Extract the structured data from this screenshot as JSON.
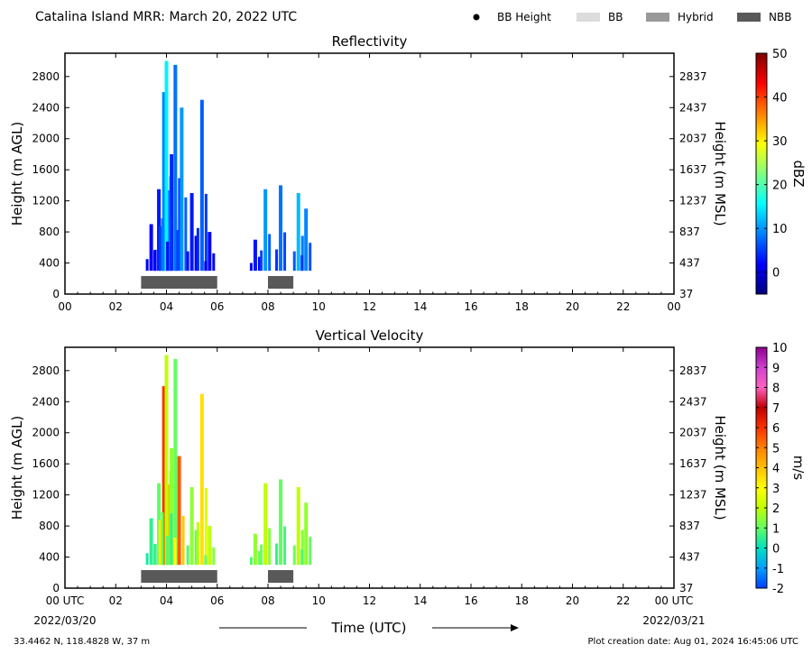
{
  "header": {
    "title": "Catalina Island MRR:  March 20, 2022 UTC",
    "legend": [
      {
        "label": "BB Height",
        "kind": "dot",
        "color": "#000000"
      },
      {
        "label": "BB",
        "kind": "box",
        "color": "#dcdcdc"
      },
      {
        "label": "Hybrid",
        "kind": "box",
        "color": "#999999"
      },
      {
        "label": "NBB",
        "kind": "box",
        "color": "#595959"
      }
    ]
  },
  "footer": {
    "x_axis_label": "Time (UTC)",
    "start_date": "2022/03/20",
    "end_date": "2022/03/21",
    "location": "33.4462 N, 118.4828 W, 37 m",
    "creation_date": "Plot creation date: Aug 01, 2024 16:45:06 UTC"
  },
  "chart_data": [
    {
      "type": "heatmap",
      "title": "Reflectivity",
      "ylabel": "Height (m AGL)",
      "ylabel_right": "Height (m MSL)",
      "colorbar": {
        "label": "dBZ",
        "range": [
          -5,
          50
        ],
        "ticks": [
          0,
          10,
          20,
          30,
          40,
          50
        ],
        "colors": [
          "#00007f",
          "#0000ff",
          "#0080ff",
          "#00ffff",
          "#80ff80",
          "#ffff00",
          "#ff8000",
          "#ff0000",
          "#7f0000"
        ]
      },
      "x_ticks": [
        "00",
        "02",
        "04",
        "06",
        "08",
        "10",
        "12",
        "14",
        "16",
        "18",
        "20",
        "22",
        "00"
      ],
      "xlim_hours": [
        0,
        24
      ],
      "ylim": [
        0,
        3100
      ],
      "y_ticks_left": [
        0,
        400,
        800,
        1200,
        1600,
        2000,
        2400,
        2800
      ],
      "y_ticks_right": [
        37,
        437,
        837,
        1237,
        1637,
        2037,
        2437,
        2837
      ],
      "bright_band_type": [
        {
          "type": "NBB",
          "start_hour": 3.0,
          "end_hour": 6.0
        },
        {
          "type": "NBB",
          "start_hour": 8.0,
          "end_hour": 9.0
        }
      ],
      "echo_columns": [
        {
          "hour": 3.4,
          "top": 900,
          "value": 2
        },
        {
          "hour": 3.7,
          "top": 1350,
          "value": 3
        },
        {
          "hour": 3.9,
          "top": 2600,
          "value": 9
        },
        {
          "hour": 4.0,
          "top": 3000,
          "value": 15
        },
        {
          "hour": 4.2,
          "top": 1800,
          "value": 4
        },
        {
          "hour": 4.35,
          "top": 2950,
          "value": 8
        },
        {
          "hour": 4.6,
          "top": 2400,
          "value": 10
        },
        {
          "hour": 5.0,
          "top": 1300,
          "value": 3
        },
        {
          "hour": 5.4,
          "top": 2500,
          "value": 7
        },
        {
          "hour": 5.7,
          "top": 800,
          "value": 2
        },
        {
          "hour": 7.5,
          "top": 700,
          "value": 3
        },
        {
          "hour": 7.9,
          "top": 1350,
          "value": 10
        },
        {
          "hour": 8.5,
          "top": 1400,
          "value": 8
        },
        {
          "hour": 9.2,
          "top": 1300,
          "value": 12
        },
        {
          "hour": 9.5,
          "top": 1100,
          "value": 9
        }
      ]
    },
    {
      "type": "heatmap",
      "title": "Vertical Velocity",
      "ylabel": "Height (m AGL)",
      "ylabel_right": "Height (m MSL)",
      "colorbar": {
        "label": "m/s",
        "range": [
          -2,
          10
        ],
        "ticks": [
          -2,
          -1,
          0,
          1,
          2,
          3,
          4,
          5,
          6,
          7,
          8,
          9,
          10
        ],
        "colors": [
          "#0040ff",
          "#00a0ff",
          "#00e0c0",
          "#60ff60",
          "#c0ff00",
          "#ffff00",
          "#ffc000",
          "#ff8000",
          "#ff3000",
          "#c00000",
          "#ff60c0",
          "#d040d0",
          "#900090"
        ]
      },
      "x_ticks": [
        "00 UTC",
        "02",
        "04",
        "06",
        "08",
        "10",
        "12",
        "14",
        "16",
        "18",
        "20",
        "22",
        "00 UTC"
      ],
      "xlim_hours": [
        0,
        24
      ],
      "ylim": [
        0,
        3100
      ],
      "y_ticks_left": [
        0,
        400,
        800,
        1200,
        1600,
        2000,
        2400,
        2800
      ],
      "y_ticks_right": [
        37,
        437,
        837,
        1237,
        1637,
        2037,
        2437,
        2837
      ],
      "bright_band_type": [
        {
          "type": "NBB",
          "start_hour": 3.0,
          "end_hour": 6.0
        },
        {
          "type": "NBB",
          "start_hour": 8.0,
          "end_hour": 9.0
        }
      ],
      "echo_columns": [
        {
          "hour": 3.4,
          "top": 900,
          "value": 0.5
        },
        {
          "hour": 3.7,
          "top": 1350,
          "value": 1.0
        },
        {
          "hour": 3.9,
          "top": 2600,
          "value": 6.0
        },
        {
          "hour": 4.0,
          "top": 3000,
          "value": 2.0
        },
        {
          "hour": 4.2,
          "top": 1800,
          "value": 1.5
        },
        {
          "hour": 4.35,
          "top": 2950,
          "value": 1.0
        },
        {
          "hour": 4.5,
          "top": 1700,
          "value": 5.5
        },
        {
          "hour": 5.0,
          "top": 1300,
          "value": 1.5
        },
        {
          "hour": 5.4,
          "top": 2500,
          "value": 3.5
        },
        {
          "hour": 5.7,
          "top": 800,
          "value": 2.0
        },
        {
          "hour": 7.5,
          "top": 700,
          "value": 1.5
        },
        {
          "hour": 7.9,
          "top": 1350,
          "value": 2.0
        },
        {
          "hour": 8.5,
          "top": 1400,
          "value": 1.0
        },
        {
          "hour": 9.2,
          "top": 1300,
          "value": 2.0
        },
        {
          "hour": 9.5,
          "top": 1100,
          "value": 1.5
        }
      ]
    }
  ]
}
